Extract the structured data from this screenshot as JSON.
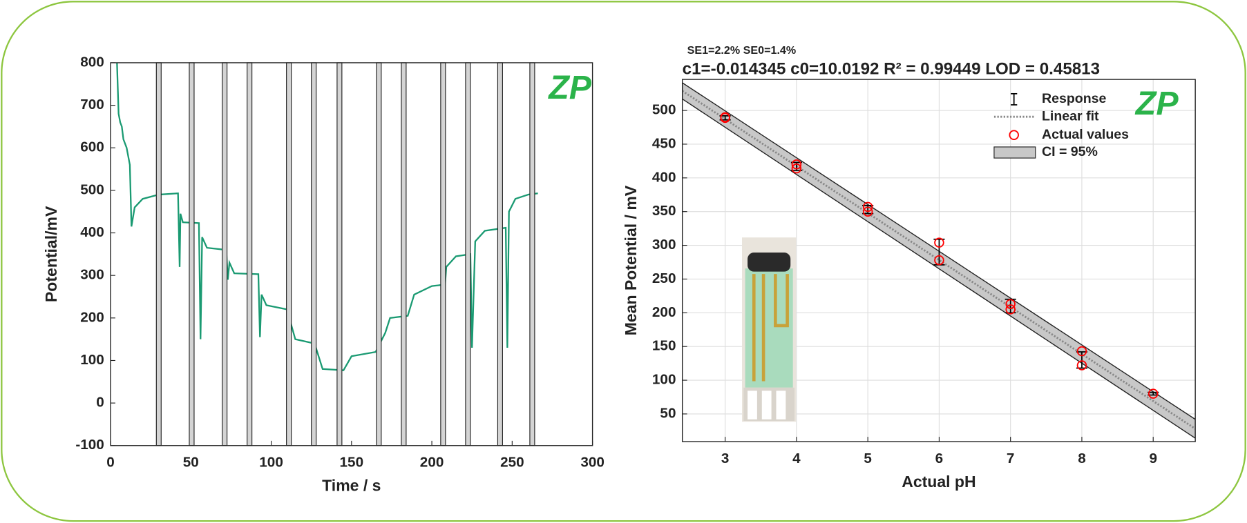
{
  "chart_data": [
    {
      "type": "line",
      "xlabel": "Time / s",
      "ylabel": "Potential/mV",
      "logo": "ZP",
      "xlim": [
        0,
        300
      ],
      "ylim": [
        -100,
        800
      ],
      "xticks": [
        0,
        50,
        100,
        150,
        200,
        250,
        300
      ],
      "yticks": [
        -100,
        0,
        100,
        200,
        300,
        400,
        500,
        600,
        700,
        800
      ],
      "color": "#1a9a72",
      "x": [
        4,
        5,
        6,
        7,
        8,
        10,
        11,
        12,
        13,
        15,
        20,
        30,
        42,
        43,
        43.5,
        45,
        55,
        56,
        57,
        60,
        72,
        73,
        74,
        77,
        92,
        93,
        94,
        97,
        110,
        111,
        112,
        115,
        127,
        132,
        145,
        150,
        165,
        171,
        174,
        185,
        189,
        200,
        207,
        207.5,
        209,
        215,
        224,
        225,
        227,
        233,
        246,
        247,
        248,
        252,
        260,
        266
      ],
      "values": [
        800,
        680,
        660,
        650,
        620,
        600,
        580,
        560,
        415,
        460,
        480,
        490,
        493,
        320,
        445,
        425,
        423,
        150,
        390,
        365,
        360,
        290,
        330,
        305,
        303,
        155,
        255,
        230,
        220,
        95,
        190,
        150,
        140,
        80,
        77,
        110,
        120,
        165,
        200,
        205,
        255,
        275,
        278,
        240,
        320,
        345,
        350,
        130,
        380,
        405,
        412,
        130,
        450,
        480,
        490,
        493
      ],
      "shaded_intervals": [
        [
          28.5,
          31.5
        ],
        [
          49,
          52
        ],
        [
          69.5,
          72.5
        ],
        [
          85,
          88
        ],
        [
          109.5,
          112.5
        ],
        [
          125,
          128
        ],
        [
          141,
          144
        ],
        [
          165.5,
          168.5
        ],
        [
          181,
          184
        ],
        [
          205.5,
          208.5
        ],
        [
          221,
          224
        ],
        [
          241,
          244
        ],
        [
          261,
          264
        ]
      ]
    },
    {
      "type": "scatter",
      "subtitle": "SE1=2.2% SE0=1.4%",
      "title": "c1=-0.014345 c0=10.0192  R² = 0.99449  LOD = 0.45813",
      "xlabel": "Actual pH",
      "ylabel": "Mean Potential / mV",
      "logo": "ZP",
      "xlim": [
        2.4,
        9.59
      ],
      "ylim": [
        9,
        546
      ],
      "xticks": [
        3,
        4,
        5,
        6,
        7,
        8,
        9
      ],
      "yticks": [
        50,
        100,
        150,
        200,
        250,
        300,
        350,
        400,
        450,
        500
      ],
      "grid": true,
      "legend": "upper right",
      "ci": {
        "name": "CI = 95%",
        "color": "#c8c8c8",
        "x": [
          2.4,
          9.59
        ],
        "upper": [
          541,
          42
        ],
        "lower": [
          517,
          14
        ]
      },
      "fit": {
        "name": "Linear fit",
        "color": "#888888",
        "x": [
          2.4,
          9.59
        ],
        "values": [
          529,
          28
        ]
      },
      "response": {
        "name": "Response",
        "color": "#000000",
        "x": [
          3,
          4,
          5,
          6,
          7,
          8,
          9
        ],
        "values": [
          489,
          417,
          353,
          290,
          210,
          130,
          80
        ],
        "errors": [
          3,
          6,
          6,
          19,
          10,
          12,
          2
        ]
      },
      "actual": {
        "name": "Actual values",
        "color": "#ff0000",
        "x": [
          3,
          3,
          4,
          4,
          5,
          5,
          6,
          6,
          7,
          7,
          8,
          8,
          9
        ],
        "values": [
          490,
          489,
          420,
          414,
          357,
          350,
          304,
          278,
          213,
          205,
          143,
          122,
          80
        ]
      }
    }
  ]
}
